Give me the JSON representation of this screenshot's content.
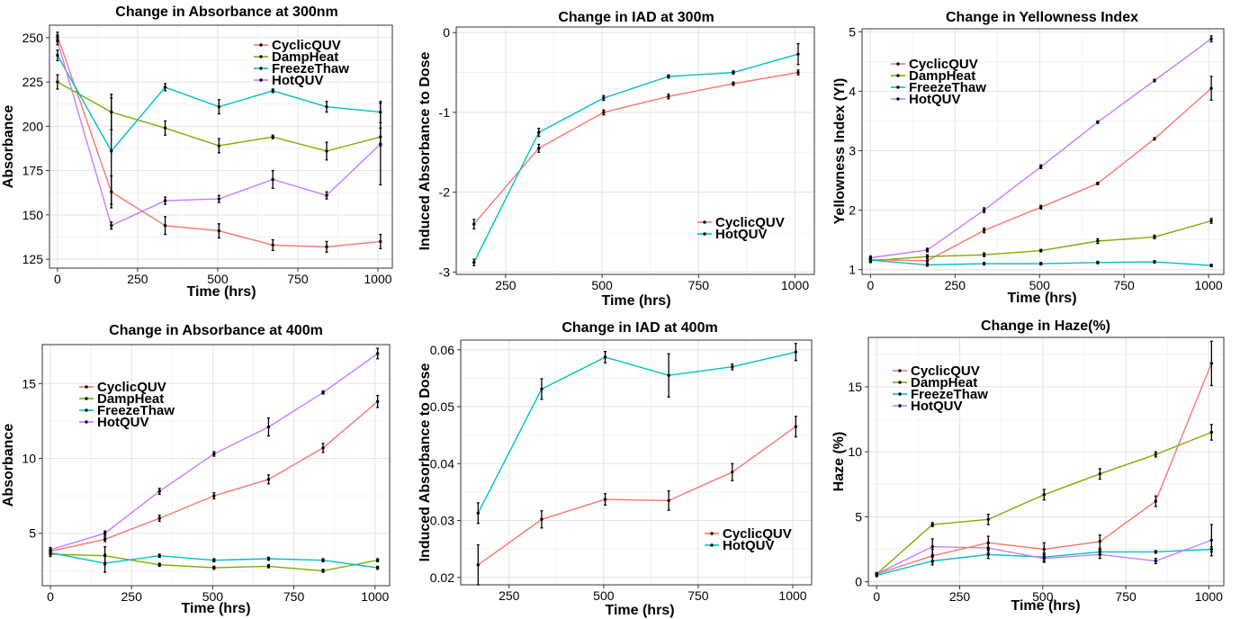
{
  "chart_data": [
    {
      "type": "line",
      "title": "Change in Absorbance at 300nm",
      "xlabel": "Time (hrs)",
      "ylabel": "Absorbance",
      "xlim": [
        -25,
        1045
      ],
      "ylim": [
        120,
        257
      ],
      "xticks": [
        0,
        250,
        500,
        750,
        1000
      ],
      "xtick_labels": [
        "0",
        "250",
        "500",
        "750",
        "1000"
      ],
      "yticks": [
        125,
        150,
        175,
        200,
        225,
        250
      ],
      "ytick_labels": [
        "125",
        "150",
        "175",
        "200",
        "225",
        "250"
      ],
      "grid": true,
      "legend_position": "top-right",
      "x": [
        0,
        168,
        336,
        504,
        672,
        840,
        1008
      ],
      "series": [
        {
          "name": "CyclicQUV",
          "color": "#F8766D",
          "values": [
            251,
            163,
            144,
            141,
            133,
            132,
            135
          ],
          "errors": [
            2,
            9,
            5,
            4,
            3,
            3,
            4
          ]
        },
        {
          "name": "DampHeat",
          "color": "#7CAE00",
          "values": [
            225,
            208,
            199,
            189,
            194,
            186,
            194
          ],
          "errors": [
            4,
            10,
            4,
            4,
            1,
            5,
            5
          ]
        },
        {
          "name": "FreezeThaw",
          "color": "#00BFC4",
          "values": [
            240,
            186,
            222,
            211,
            220,
            211,
            208
          ],
          "errors": [
            3,
            30,
            2,
            4,
            1,
            3,
            6
          ]
        },
        {
          "name": "HotQUV",
          "color": "#C77CFF",
          "values": [
            248,
            144,
            158,
            159,
            170,
            161,
            190
          ],
          "errors": [
            2,
            2,
            2,
            2,
            5,
            2,
            23
          ]
        }
      ]
    },
    {
      "type": "line",
      "title": "Change in IAD at 300m",
      "xlabel": "Time (hrs)",
      "ylabel": "Induced Absorbance to Dose",
      "xlim": [
        122,
        1050
      ],
      "ylim": [
        -3.03,
        0.07
      ],
      "xticks": [
        250,
        500,
        750,
        1000
      ],
      "xtick_labels": [
        "250",
        "500",
        "750",
        "1000"
      ],
      "yticks": [
        -3,
        -2,
        -1,
        0
      ],
      "ytick_labels": [
        "-3",
        "-2",
        "-1",
        "0"
      ],
      "grid": true,
      "legend_position": "bottom-right",
      "x": [
        168,
        336,
        504,
        672,
        840,
        1008
      ],
      "series": [
        {
          "name": "CyclicQUV",
          "color": "#F8766D",
          "values": [
            -2.4,
            -1.45,
            -1.0,
            -0.8,
            -0.64,
            -0.5
          ],
          "errors": [
            0.06,
            0.05,
            0.03,
            0.03,
            0.02,
            0.03
          ]
        },
        {
          "name": "HotQUV",
          "color": "#00BFC4",
          "values": [
            -2.88,
            -1.25,
            -0.82,
            -0.55,
            -0.5,
            -0.27
          ],
          "errors": [
            0.04,
            0.05,
            0.03,
            0.02,
            0.02,
            0.13
          ]
        }
      ]
    },
    {
      "type": "line",
      "title": "Change in Yellowness Index",
      "xlabel": "Time (hrs)",
      "ylabel": "Yellowness Index (YI)",
      "xlim": [
        -25,
        1045
      ],
      "ylim": [
        0.92,
        5.05
      ],
      "xticks": [
        0,
        250,
        500,
        750,
        1000
      ],
      "xtick_labels": [
        "0",
        "250",
        "500",
        "750",
        "1000"
      ],
      "yticks": [
        1,
        2,
        3,
        4,
        5
      ],
      "ytick_labels": [
        "1",
        "2",
        "3",
        "4",
        "5"
      ],
      "grid": true,
      "legend_position": "top-left",
      "x": [
        0,
        168,
        336,
        504,
        672,
        840,
        1008
      ],
      "series": [
        {
          "name": "CyclicQUV",
          "color": "#F8766D",
          "values": [
            1.17,
            1.15,
            1.66,
            2.05,
            2.45,
            3.2,
            4.05
          ],
          "errors": [
            0.04,
            0.04,
            0.04,
            0.03,
            0.02,
            0.02,
            0.2
          ]
        },
        {
          "name": "DampHeat",
          "color": "#7CAE00",
          "values": [
            1.15,
            1.22,
            1.25,
            1.32,
            1.48,
            1.55,
            1.82
          ],
          "errors": [
            0.03,
            0.03,
            0.03,
            0.02,
            0.04,
            0.03,
            0.04
          ]
        },
        {
          "name": "FreezeThaw",
          "color": "#00BFC4",
          "values": [
            1.16,
            1.08,
            1.1,
            1.1,
            1.12,
            1.13,
            1.07
          ],
          "errors": [
            0.04,
            0.02,
            0.02,
            0.02,
            0.02,
            0.02,
            0.02
          ]
        },
        {
          "name": "HotQUV",
          "color": "#C77CFF",
          "values": [
            1.2,
            1.33,
            2.0,
            2.73,
            3.48,
            4.18,
            4.88
          ],
          "errors": [
            0.03,
            0.03,
            0.04,
            0.03,
            0.02,
            0.02,
            0.05
          ]
        }
      ]
    },
    {
      "type": "line",
      "title": "Change in Absorbance at 400m",
      "xlabel": "Time (hrs)",
      "ylabel": "Absorbance",
      "xlim": [
        -25,
        1045
      ],
      "ylim": [
        1.5,
        17.6
      ],
      "xticks": [
        0,
        250,
        500,
        750,
        1000
      ],
      "xtick_labels": [
        "0",
        "250",
        "500",
        "750",
        "1000"
      ],
      "yticks": [
        5,
        10,
        15
      ],
      "ytick_labels": [
        "5",
        "10",
        "15"
      ],
      "grid": true,
      "legend_position": "top-left",
      "x": [
        0,
        168,
        336,
        504,
        672,
        840,
        1008
      ],
      "series": [
        {
          "name": "CyclicQUV",
          "color": "#F8766D",
          "values": [
            3.8,
            4.6,
            6.0,
            7.5,
            8.6,
            10.7,
            13.8
          ],
          "errors": [
            0.15,
            0.15,
            0.2,
            0.2,
            0.3,
            0.3,
            0.4
          ]
        },
        {
          "name": "DampHeat",
          "color": "#7CAE00",
          "values": [
            3.6,
            3.5,
            2.9,
            2.7,
            2.8,
            2.5,
            3.2
          ],
          "errors": [
            0.15,
            0.6,
            0.1,
            0.1,
            0.1,
            0.1,
            0.1
          ]
        },
        {
          "name": "FreezeThaw",
          "color": "#00BFC4",
          "values": [
            3.7,
            3.0,
            3.5,
            3.2,
            3.3,
            3.2,
            2.7
          ],
          "errors": [
            0.1,
            0.6,
            0.1,
            0.1,
            0.1,
            0.1,
            0.1
          ]
        },
        {
          "name": "HotQUV",
          "color": "#C77CFF",
          "values": [
            3.9,
            5.0,
            7.8,
            10.3,
            12.1,
            14.4,
            17.0
          ],
          "errors": [
            0.15,
            0.15,
            0.2,
            0.15,
            0.6,
            0.1,
            0.35
          ]
        }
      ]
    },
    {
      "type": "line",
      "title": "Change in IAD at 400m",
      "xlabel": "Time (hrs)",
      "ylabel": "Induced Absorbance to Dose",
      "xlim": [
        122,
        1050
      ],
      "ylim": [
        0.0187,
        0.0617
      ],
      "xticks": [
        250,
        500,
        750,
        1000
      ],
      "xtick_labels": [
        "250",
        "500",
        "750",
        "1000"
      ],
      "yticks": [
        0.02,
        0.03,
        0.04,
        0.05,
        0.06
      ],
      "ytick_labels": [
        "0.02",
        "0.03",
        "0.04",
        "0.05",
        "0.06"
      ],
      "grid": true,
      "legend_position": "bottom-right",
      "x": [
        168,
        336,
        504,
        672,
        840,
        1008
      ],
      "series": [
        {
          "name": "CyclicQUV",
          "color": "#F8766D",
          "values": [
            0.0222,
            0.0302,
            0.0337,
            0.0335,
            0.0385,
            0.0465
          ],
          "errors": [
            0.0035,
            0.0015,
            0.001,
            0.0017,
            0.0015,
            0.0018
          ]
        },
        {
          "name": "HotQUV",
          "color": "#00BFC4",
          "values": [
            0.0313,
            0.0531,
            0.0587,
            0.0555,
            0.057,
            0.0596
          ],
          "errors": [
            0.0018,
            0.0018,
            0.001,
            0.0038,
            0.0005,
            0.0015
          ]
        }
      ]
    },
    {
      "type": "line",
      "title": "Change in Haze(%)",
      "xlabel": "Time (hrs)",
      "ylabel": "Haze (%)",
      "xlim": [
        -25,
        1045
      ],
      "ylim": [
        -0.3,
        18.8
      ],
      "xticks": [
        0,
        250,
        500,
        750,
        1000
      ],
      "xtick_labels": [
        "0",
        "250",
        "500",
        "750",
        "1000"
      ],
      "yticks": [
        0,
        5,
        10,
        15
      ],
      "ytick_labels": [
        "0",
        "5",
        "10",
        "15"
      ],
      "grid": true,
      "legend_position": "top-left",
      "x": [
        0,
        168,
        336,
        504,
        672,
        840,
        1008
      ],
      "series": [
        {
          "name": "CyclicQUV",
          "color": "#F8766D",
          "values": [
            0.6,
            2.0,
            3.0,
            2.5,
            3.1,
            6.2,
            16.8
          ],
          "errors": [
            0.1,
            0.5,
            0.5,
            0.5,
            0.5,
            0.4,
            1.7
          ]
        },
        {
          "name": "DampHeat",
          "color": "#7CAE00",
          "values": [
            0.6,
            4.4,
            4.8,
            6.7,
            8.3,
            9.8,
            11.5
          ],
          "errors": [
            0.1,
            0.15,
            0.4,
            0.4,
            0.4,
            0.2,
            0.6
          ]
        },
        {
          "name": "FreezeThaw",
          "color": "#00BFC4",
          "values": [
            0.5,
            1.6,
            2.1,
            1.9,
            2.3,
            2.3,
            2.5
          ],
          "errors": [
            0.1,
            0.3,
            0.3,
            0.3,
            0.2,
            0.1,
            0.2
          ]
        },
        {
          "name": "HotQUV",
          "color": "#C77CFF",
          "values": [
            0.6,
            2.7,
            2.6,
            1.8,
            2.1,
            1.6,
            3.2
          ],
          "errors": [
            0.1,
            0.6,
            0.4,
            0.3,
            0.3,
            0.2,
            1.2
          ]
        }
      ]
    }
  ]
}
